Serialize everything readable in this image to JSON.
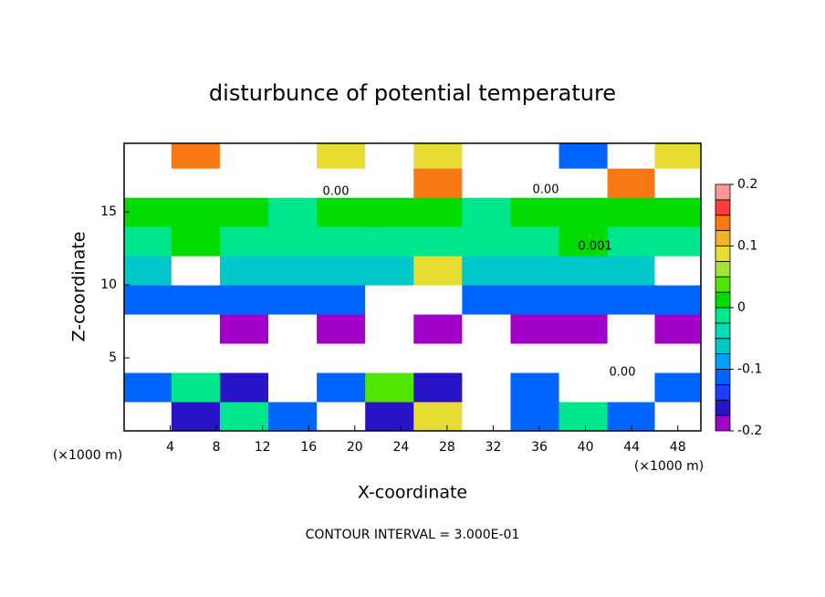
{
  "chart_data": {
    "type": "heatmap",
    "title": "disturbunce of potential temperature",
    "x_label": "X-coordinate",
    "y_label": "Z-coordinate",
    "x_unit": "(×1000 m)",
    "footer": "CONTOUR INTERVAL = 3.000E-01",
    "annotations": [
      "0.00",
      "0.00",
      "0.001",
      "0.00"
    ],
    "xlim": [
      0,
      50
    ],
    "xticks": [
      4,
      8,
      12,
      16,
      20,
      24,
      28,
      32,
      36,
      40,
      44,
      48
    ],
    "ylim": [
      0,
      19.7
    ],
    "yticks": [
      5,
      10,
      15
    ],
    "x": [
      2,
      6.2,
      10.4,
      14.6,
      18.8,
      23,
      27.2,
      31.4,
      35.6,
      39.8,
      44,
      48
    ],
    "y": [
      1,
      3,
      5,
      7,
      9,
      11,
      13,
      15,
      17,
      19
    ],
    "z": [
      [
        0.5,
        -0.15,
        0.0,
        -0.1,
        0.5,
        -0.15,
        0.1,
        0.5,
        -0.1,
        0.0,
        -0.1,
        0.5
      ],
      [
        -0.1,
        0.0,
        -0.15,
        0.5,
        -0.1,
        0.05,
        -0.15,
        0.5,
        -0.1,
        0.5,
        0.5,
        -0.1
      ],
      [
        0.5,
        -0.5,
        0.5,
        -0.5,
        -0.5,
        -0.5,
        -0.5,
        -0.5,
        -0.5,
        -0.5,
        -0.5,
        0.5
      ],
      [
        -0.25,
        0.5,
        -0.18,
        0.5,
        -0.18,
        0.5,
        -0.2,
        0.5,
        -0.18,
        -0.18,
        -0.25,
        -0.18
      ],
      [
        -0.12,
        -0.12,
        -0.12,
        -0.1,
        -0.1,
        0.5,
        0.5,
        -0.1,
        -0.1,
        -0.12,
        -0.12,
        -0.12
      ],
      [
        -0.05,
        0.5,
        -0.05,
        -0.05,
        -0.05,
        -0.05,
        0.1,
        -0.05,
        -0.05,
        -0.05,
        -0.05,
        0.5
      ],
      [
        0.0,
        0.02,
        0.0,
        0.0,
        0.0,
        0.0,
        0.0,
        0.0,
        0.0,
        0.02,
        0.0,
        0.0
      ],
      [
        0.02,
        0.02,
        0.02,
        0.0,
        0.02,
        0.02,
        0.02,
        0.0,
        0.02,
        0.02,
        0.02,
        0.02
      ],
      [
        -0.5,
        -0.5,
        -0.5,
        -0.5,
        0.5,
        0.5,
        0.15,
        0.5,
        -0.5,
        -0.5,
        0.15,
        0.5
      ],
      [
        0.5,
        0.15,
        0.5,
        0.5,
        0.1,
        0.5,
        0.1,
        0.5,
        0.5,
        -0.1,
        0.5,
        0.1
      ]
    ],
    "levels": [
      -0.2,
      -0.175,
      -0.15,
      -0.125,
      -0.1,
      -0.075,
      -0.05,
      -0.025,
      0,
      0.025,
      0.05,
      0.075,
      0.1,
      0.125,
      0.15,
      0.175,
      0.2
    ],
    "colors": [
      "#a000c8",
      "#2814c8",
      "#1e3cff",
      "#0064ff",
      "#00a0ff",
      "#00c8c8",
      "#00dcb4",
      "#00e68c",
      "#00dc00",
      "#50e600",
      "#a0e632",
      "#e6dc32",
      "#f0b428",
      "#fa7814",
      "#fa3c3c",
      "#ff9696"
    ],
    "out_of_range_color": "#ffffff",
    "cbticks": [
      -0.2,
      -0.1,
      0,
      0.1,
      0.2
    ]
  }
}
